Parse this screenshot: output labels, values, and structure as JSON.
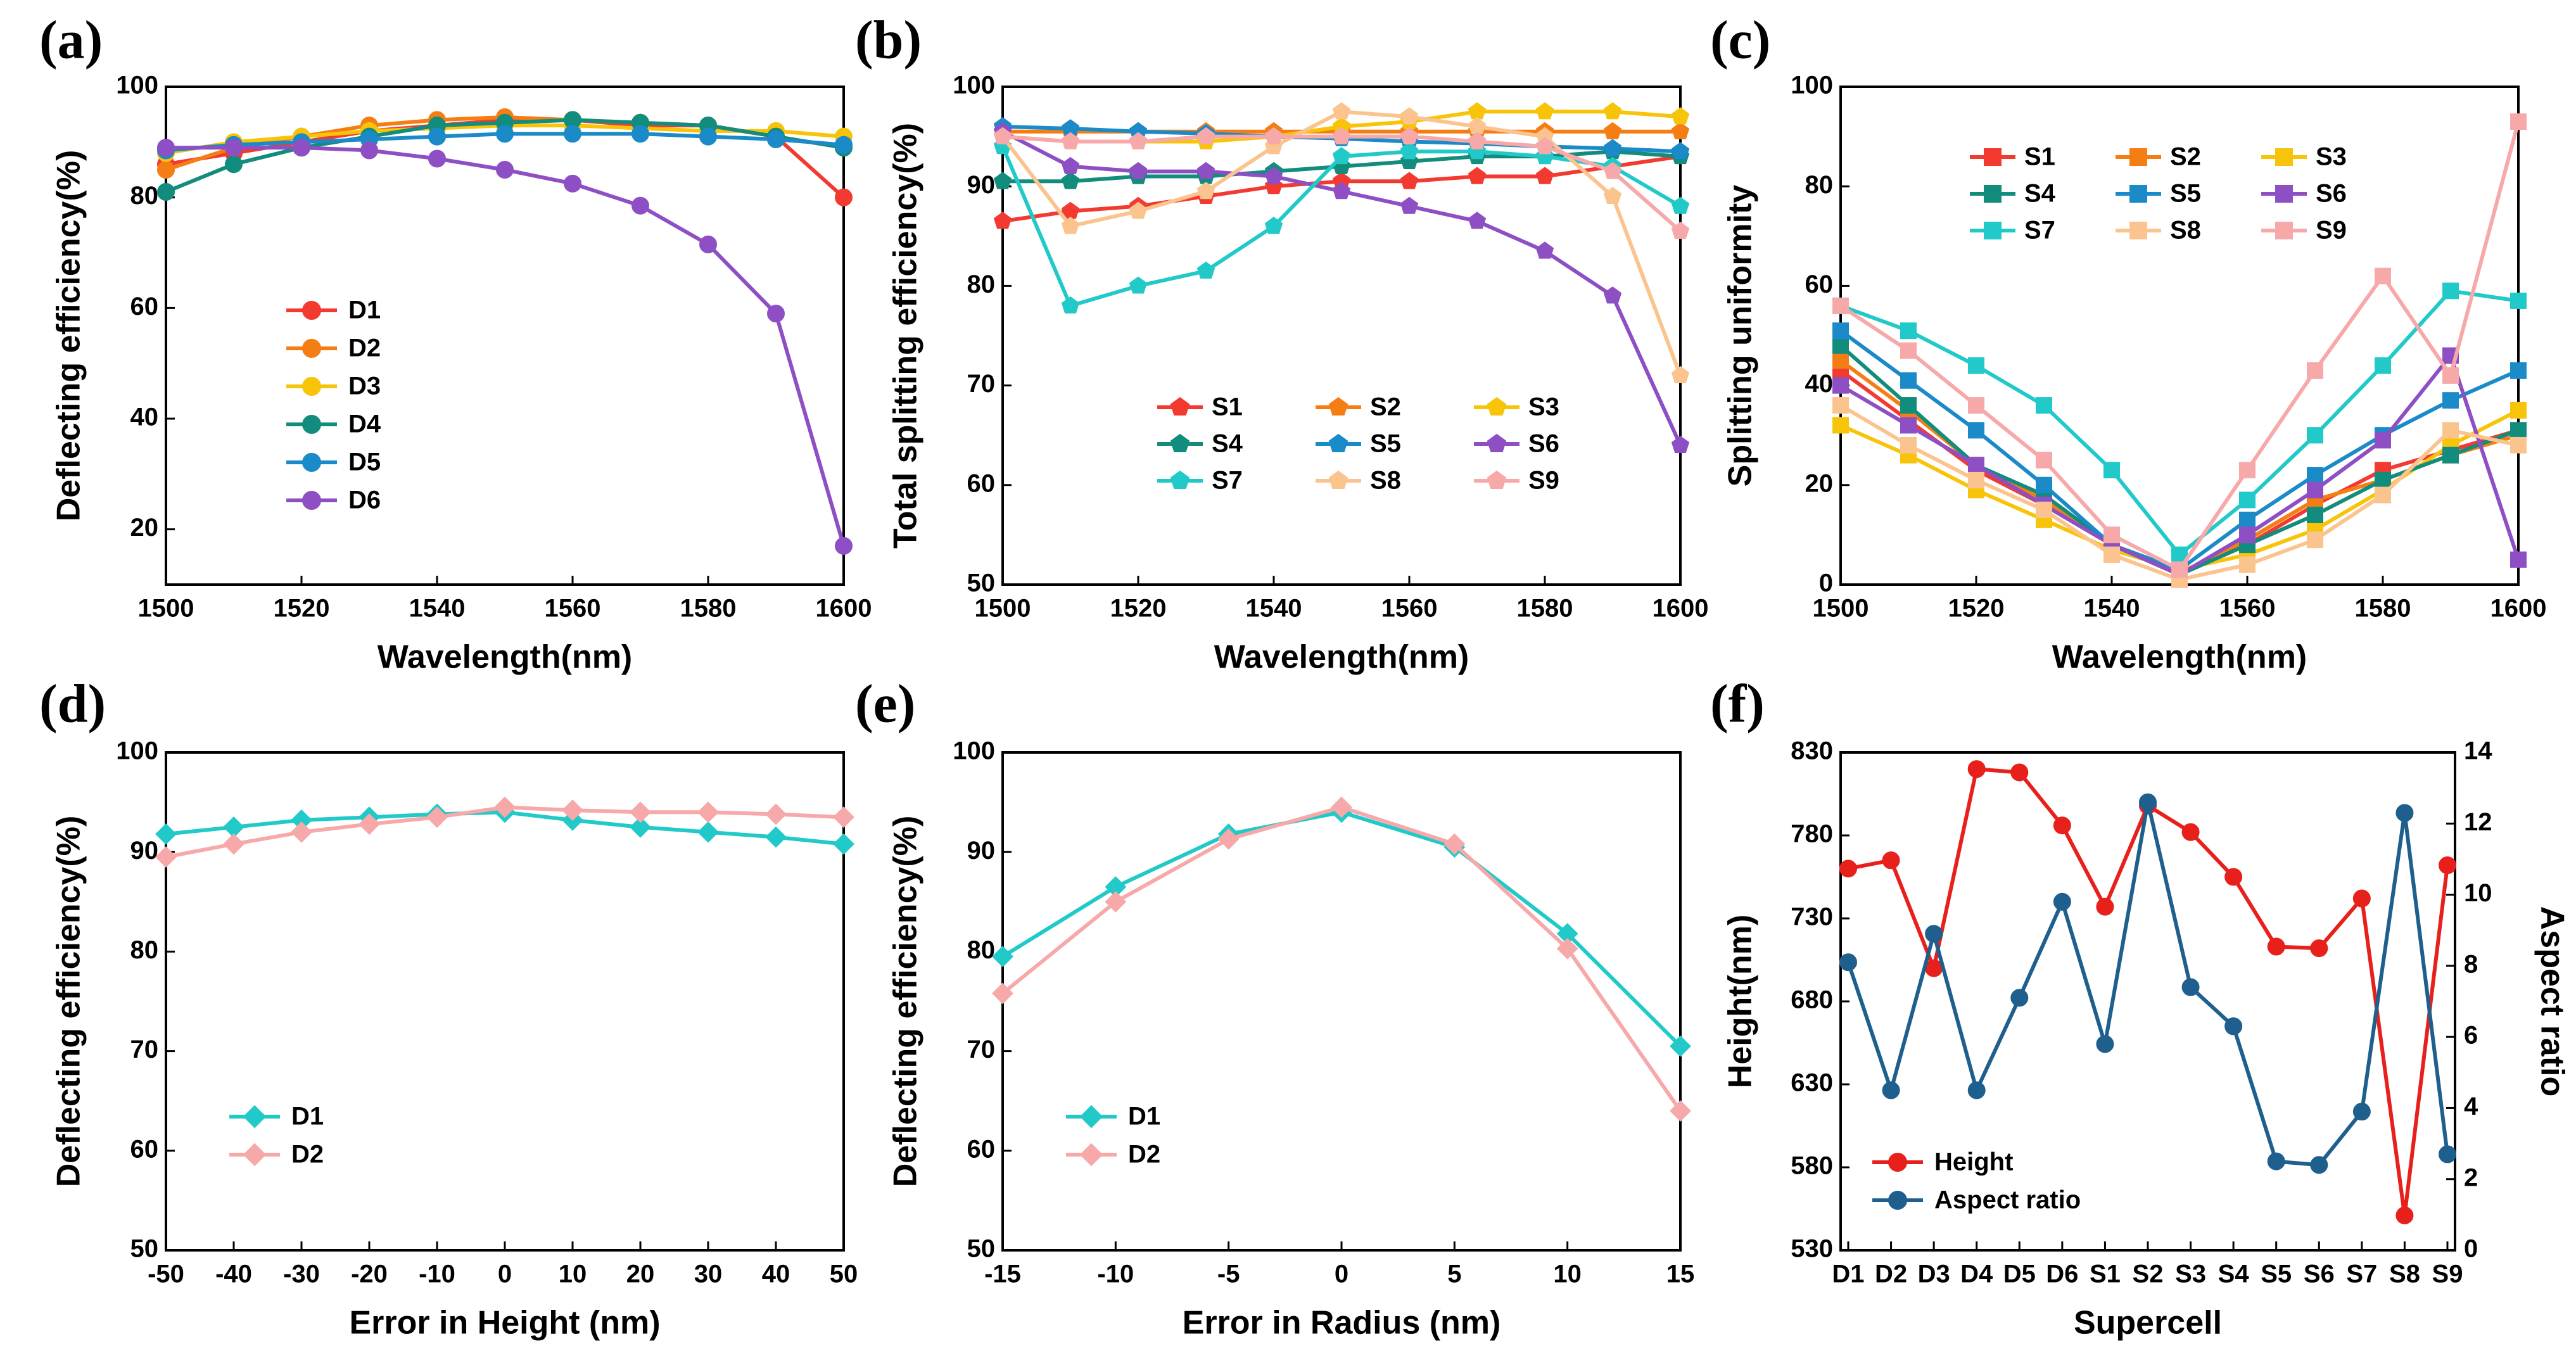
{
  "figure": {
    "panel_labels": [
      "(a)",
      "(b)",
      "(c)",
      "(d)",
      "(e)",
      "(f)"
    ]
  },
  "chart_data": [
    {
      "panel": "(a)",
      "type": "line",
      "xlabel": "Wavelength(nm)",
      "ylabel": "Deflecting efficiency(%)",
      "xlim": [
        1500,
        1600
      ],
      "ylim": [
        10,
        100
      ],
      "xticks": [
        1500,
        1520,
        1540,
        1560,
        1580,
        1600
      ],
      "yticks": [
        20,
        40,
        60,
        80,
        100
      ],
      "legend_position": "center-left",
      "x": [
        1500,
        1510,
        1520,
        1530,
        1540,
        1550,
        1560,
        1570,
        1580,
        1590,
        1600
      ],
      "series": [
        {
          "name": "D1",
          "color": "#f23a31",
          "marker": "circle",
          "values": [
            86,
            88,
            90,
            92,
            93,
            94,
            94,
            93,
            93,
            91,
            80
          ]
        },
        {
          "name": "D2",
          "color": "#f57e14",
          "marker": "circle",
          "values": [
            85,
            89,
            91,
            93,
            94,
            94.5,
            94,
            93.5,
            93,
            91,
            89
          ]
        },
        {
          "name": "D3",
          "color": "#f7c40a",
          "marker": "circle",
          "values": [
            88,
            90,
            91,
            92,
            92.5,
            93,
            93,
            92.5,
            92,
            92,
            91
          ]
        },
        {
          "name": "D4",
          "color": "#128c7c",
          "marker": "circle",
          "values": [
            81,
            86,
            89,
            91,
            93,
            93.5,
            94,
            93.5,
            93,
            91,
            89
          ]
        },
        {
          "name": "D5",
          "color": "#1a8ac8",
          "marker": "circle",
          "values": [
            88.5,
            89.5,
            90,
            90.5,
            91,
            91.5,
            91.5,
            91.5,
            91,
            90.5,
            89.5
          ]
        },
        {
          "name": "D6",
          "color": "#8e4fc4",
          "marker": "circle",
          "values": [
            89,
            89,
            89,
            88.5,
            87,
            85,
            82.5,
            78.5,
            71.5,
            59,
            17
          ]
        }
      ]
    },
    {
      "panel": "(b)",
      "type": "line",
      "xlabel": "Wavelength(nm)",
      "ylabel": "Total splitting efficiency(%)",
      "xlim": [
        1500,
        1600
      ],
      "ylim": [
        50,
        100
      ],
      "xticks": [
        1500,
        1520,
        1540,
        1560,
        1580,
        1600
      ],
      "yticks": [
        50,
        60,
        70,
        80,
        90,
        100
      ],
      "legend_position": "lower-center",
      "x": [
        1500,
        1510,
        1520,
        1530,
        1540,
        1550,
        1560,
        1570,
        1580,
        1590,
        1600
      ],
      "series": [
        {
          "name": "S1",
          "color": "#f23a31",
          "marker": "pentagon",
          "values": [
            86.5,
            87.5,
            88,
            89,
            90,
            90.5,
            90.5,
            91,
            91,
            92,
            93
          ]
        },
        {
          "name": "S2",
          "color": "#f57e14",
          "marker": "pentagon",
          "values": [
            95.5,
            95.5,
            95.5,
            95.5,
            95.5,
            95.5,
            95.5,
            95.5,
            95.5,
            95.5,
            95.5
          ]
        },
        {
          "name": "S3",
          "color": "#f7c40a",
          "marker": "pentagon",
          "values": [
            95,
            94.5,
            94.5,
            94.5,
            95,
            96,
            96.5,
            97.5,
            97.5,
            97.5,
            97
          ]
        },
        {
          "name": "S4",
          "color": "#128c7c",
          "marker": "pentagon",
          "values": [
            90.5,
            90.5,
            91,
            91,
            91.5,
            92,
            92.5,
            93,
            93,
            93.5,
            93
          ]
        },
        {
          "name": "S5",
          "color": "#1a8ac8",
          "marker": "pentagon",
          "values": [
            96,
            95.8,
            95.5,
            95.3,
            95,
            94.8,
            94.5,
            94.3,
            94,
            93.8,
            93.5
          ]
        },
        {
          "name": "S6",
          "color": "#8e4fc4",
          "marker": "pentagon",
          "values": [
            95.5,
            92,
            91.5,
            91.5,
            91,
            89.5,
            88,
            86.5,
            83.5,
            79,
            64
          ]
        },
        {
          "name": "S7",
          "color": "#22c9c9",
          "marker": "pentagon",
          "values": [
            94,
            78,
            80,
            81.5,
            86,
            93,
            93.5,
            93.5,
            93,
            92,
            88
          ]
        },
        {
          "name": "S8",
          "color": "#fbc48f",
          "marker": "pentagon",
          "values": [
            95,
            86,
            87.5,
            89.5,
            94,
            97.5,
            97,
            96,
            95,
            89,
            71
          ]
        },
        {
          "name": "S9",
          "color": "#f7a8a8",
          "marker": "pentagon",
          "values": [
            95,
            94.5,
            94.5,
            95,
            95,
            95,
            95,
            94.5,
            94,
            91.5,
            85.5
          ]
        }
      ]
    },
    {
      "panel": "(c)",
      "type": "line",
      "xlabel": "Wavelength(nm)",
      "ylabel": "Splitting uniformity",
      "xlim": [
        1500,
        1600
      ],
      "ylim": [
        0,
        100
      ],
      "xticks": [
        1500,
        1520,
        1540,
        1560,
        1580,
        1600
      ],
      "yticks": [
        0,
        20,
        40,
        60,
        80,
        100
      ],
      "legend_position": "top-center",
      "x": [
        1500,
        1510,
        1520,
        1530,
        1540,
        1550,
        1560,
        1570,
        1580,
        1590,
        1600
      ],
      "series": [
        {
          "name": "S1",
          "color": "#f23a31",
          "marker": "square",
          "values": [
            43,
            33,
            23,
            16,
            8,
            2,
            8,
            16,
            23,
            27,
            31
          ]
        },
        {
          "name": "S2",
          "color": "#f57e14",
          "marker": "square",
          "values": [
            45,
            35,
            24,
            17,
            8,
            2,
            9,
            17,
            21,
            26,
            30
          ]
        },
        {
          "name": "S3",
          "color": "#f7c40a",
          "marker": "square",
          "values": [
            32,
            26,
            19,
            13,
            7,
            3,
            6,
            11,
            19,
            28,
            35
          ]
        },
        {
          "name": "S4",
          "color": "#128c7c",
          "marker": "square",
          "values": [
            48,
            36,
            24,
            18,
            8,
            2,
            8,
            14,
            21,
            26,
            31
          ]
        },
        {
          "name": "S5",
          "color": "#1a8ac8",
          "marker": "square",
          "values": [
            51,
            41,
            31,
            20,
            8,
            3,
            13,
            22,
            30,
            37,
            43
          ]
        },
        {
          "name": "S6",
          "color": "#8e4fc4",
          "marker": "square",
          "values": [
            40,
            32,
            24,
            16,
            8,
            2,
            10,
            19,
            29,
            46,
            5
          ]
        },
        {
          "name": "S7",
          "color": "#22c9c9",
          "marker": "square",
          "values": [
            56,
            51,
            44,
            36,
            23,
            6,
            17,
            30,
            44,
            59,
            57
          ]
        },
        {
          "name": "S8",
          "color": "#fbc48f",
          "marker": "square",
          "values": [
            36,
            28,
            21,
            15,
            6,
            1,
            4,
            9,
            18,
            31,
            28
          ]
        },
        {
          "name": "S9",
          "color": "#f7a8a8",
          "marker": "square",
          "values": [
            56,
            47,
            36,
            25,
            10,
            3,
            23,
            43,
            62,
            42,
            93
          ]
        }
      ]
    },
    {
      "panel": "(d)",
      "type": "line",
      "xlabel": "Error in Height (nm)",
      "ylabel": "Deflecting efficiency(%)",
      "xlim": [
        -50,
        50
      ],
      "ylim": [
        50,
        100
      ],
      "xticks": [
        -50,
        -40,
        -30,
        -20,
        -10,
        0,
        10,
        20,
        30,
        40,
        50
      ],
      "yticks": [
        50,
        60,
        70,
        80,
        90,
        100
      ],
      "legend_position": "lower-left",
      "x": [
        -50,
        -40,
        -30,
        -20,
        -10,
        0,
        10,
        20,
        30,
        40,
        50
      ],
      "series": [
        {
          "name": "D1",
          "color": "#22c9c9",
          "marker": "diamond",
          "values": [
            91.8,
            92.5,
            93.2,
            93.5,
            93.8,
            94,
            93.2,
            92.5,
            92,
            91.5,
            90.8
          ]
        },
        {
          "name": "D2",
          "color": "#f7a8a8",
          "marker": "diamond",
          "values": [
            89.5,
            90.8,
            92,
            92.8,
            93.5,
            94.5,
            94.2,
            94,
            94,
            93.8,
            93.5
          ]
        }
      ]
    },
    {
      "panel": "(e)",
      "type": "line",
      "xlabel": "Error in Radius (nm)",
      "ylabel": "Deflecting efficiency(%)",
      "xlim": [
        -15,
        15
      ],
      "ylim": [
        50,
        100
      ],
      "xticks": [
        -15,
        -10,
        -5,
        0,
        5,
        10,
        15
      ],
      "yticks": [
        50,
        60,
        70,
        80,
        90,
        100
      ],
      "legend_position": "lower-left",
      "x": [
        -15,
        -10,
        -5,
        0,
        5,
        10,
        15
      ],
      "series": [
        {
          "name": "D1",
          "color": "#22c9c9",
          "marker": "diamond",
          "values": [
            79.5,
            86.5,
            91.8,
            94,
            90.5,
            81.8,
            70.5
          ]
        },
        {
          "name": "D2",
          "color": "#f7a8a8",
          "marker": "diamond",
          "values": [
            75.8,
            85,
            91.3,
            94.5,
            90.8,
            80.3,
            64
          ]
        }
      ]
    },
    {
      "panel": "(f)",
      "type": "line",
      "xlabel": "Supercell",
      "ylabel": "Height(nm)",
      "ylabel_right": "Aspect ratio",
      "ylim": [
        530,
        830
      ],
      "ylim_right": [
        0,
        14
      ],
      "yticks": [
        530,
        580,
        630,
        680,
        730,
        780,
        830
      ],
      "yticks_right": [
        0,
        2,
        4,
        6,
        8,
        10,
        12,
        14
      ],
      "legend_position": "lower-left",
      "categories": [
        "D1",
        "D2",
        "D3",
        "D4",
        "D5",
        "D6",
        "S1",
        "S2",
        "S3",
        "S4",
        "S5",
        "S6",
        "S7",
        "S8",
        "S9"
      ],
      "series": [
        {
          "name": "Height",
          "color": "#e8201c",
          "marker": "sphere",
          "axis": "left",
          "values": [
            760,
            765,
            700,
            820,
            818,
            786,
            737,
            798,
            782,
            755,
            713,
            712,
            742,
            551,
            762
          ]
        },
        {
          "name": "Aspect ratio",
          "color": "#1e5f8e",
          "marker": "sphere",
          "axis": "right",
          "values": [
            8.1,
            4.5,
            8.9,
            4.5,
            7.1,
            9.8,
            5.8,
            12.6,
            7.4,
            6.3,
            2.5,
            2.4,
            3.9,
            12.3,
            2.7
          ]
        }
      ]
    }
  ]
}
